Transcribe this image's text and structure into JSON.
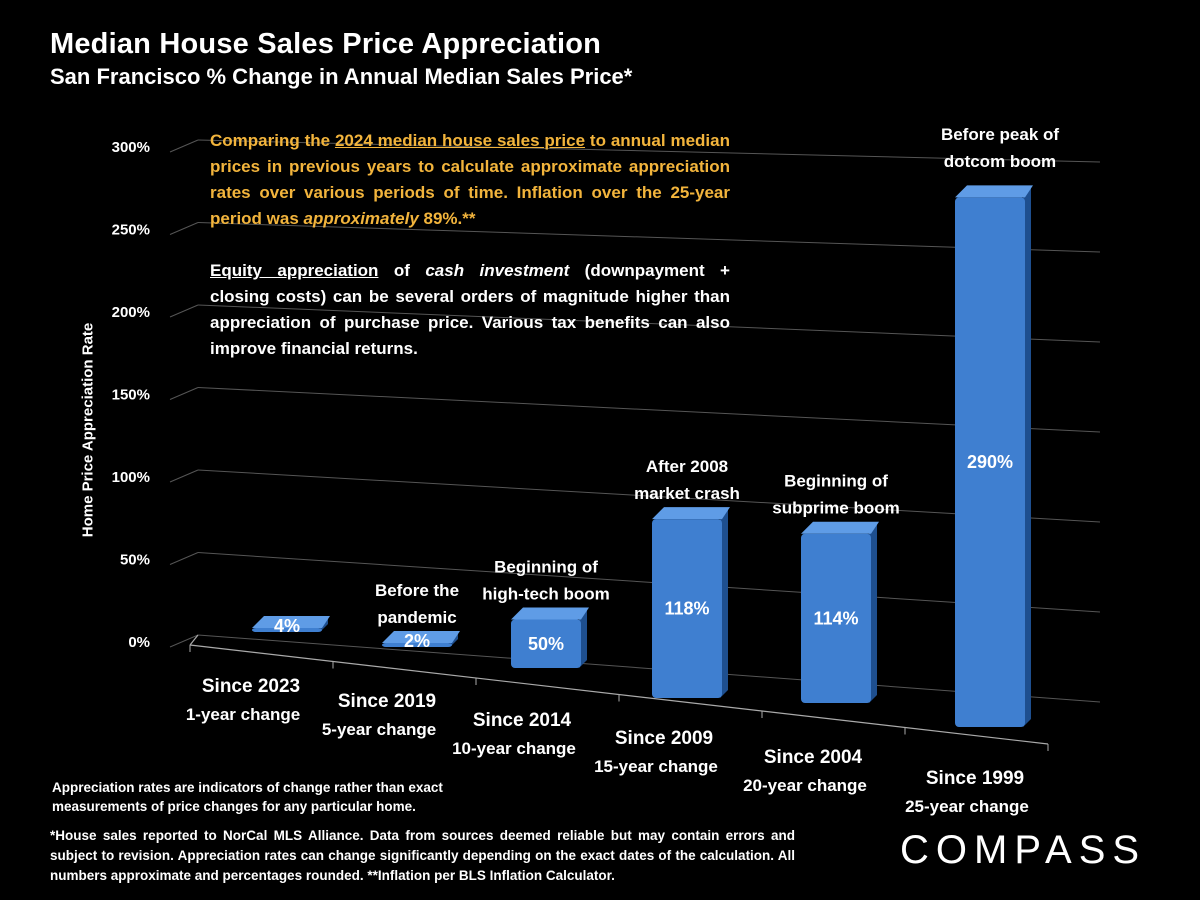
{
  "title": "Median House Sales Price Appreciation",
  "subtitle": "San Francisco % Change in Annual Median Sales Price*",
  "note1": {
    "p1": "Comparing the ",
    "link": "2024 median house sales price",
    "p2": " to annual median prices in previous years to calculate approximate appreciation rates over various periods of time. Inflation over the 25-year period was ",
    "italic": "approximately",
    "p3": " 89%.**"
  },
  "note2": {
    "u": "Equity appreciation",
    "p1": " of ",
    "i": "cash investment",
    "p2": " (downpayment + closing costs) can be several orders of magnitude higher than appreciation of purchase price. Various tax benefits can also improve financial returns."
  },
  "disclaimer": "Appreciation rates are indicators of change rather than exact measurements of price changes for any particular home.",
  "footnote": "*House sales reported to NorCal MLS Alliance. Data from sources deemed reliable but may contain errors and subject to revision. Appreciation rates can change significantly depending on the exact dates of the calculation. All numbers approximate and percentages rounded. **Inflation per BLS Inflation Calculator.",
  "logo": "COMPASS",
  "colors": {
    "bar": "#3f7fd0",
    "bar_dark": "#1e4f8f",
    "bar_light": "#5f9ce6",
    "note_accent": "#f2b43c"
  },
  "chart_data": {
    "type": "bar",
    "title": "Median House Sales Price Appreciation",
    "subtitle": "San Francisco % Change in Annual Median Sales Price*",
    "ylabel": "Home Price Appreciation Rate",
    "ylim": [
      0,
      300
    ],
    "yticks": [
      "0%",
      "50%",
      "100%",
      "150%",
      "200%",
      "250%",
      "300%"
    ],
    "categories": [
      "Since 2023",
      "Since 2019",
      "Since 2014",
      "Since 2009",
      "Since 2004",
      "Since 1999"
    ],
    "sublabels": [
      "1-year change",
      "5-year change",
      "10-year change",
      "15-year change",
      "20-year change",
      "25-year change"
    ],
    "values": [
      4,
      2,
      50,
      118,
      114,
      290
    ],
    "value_labels": [
      "4%",
      "2%",
      "50%",
      "118%",
      "114%",
      "290%"
    ],
    "annotations": [
      "",
      "Before the\npandemic",
      "Beginning of\nhigh-tech boom",
      "After 2008\nmarket crash",
      "Beginning of\nsubprime boom",
      "Before peak of\ndotcom boom"
    ],
    "grid": true
  }
}
